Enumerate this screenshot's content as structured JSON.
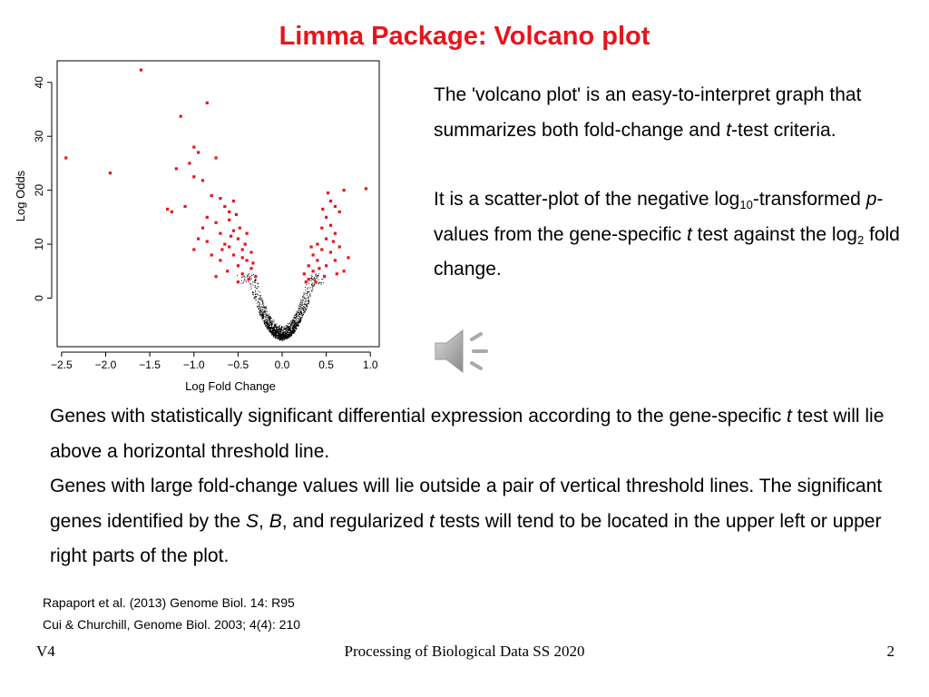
{
  "title": "Limma Package: Volcano plot",
  "right_text": {
    "p1_a": "The 'volcano plot' is an easy-to-interpret graph that summarizes both fold-change and ",
    "p1_t": "t",
    "p1_b": "-test criteria.",
    "p2_a": "It is a scatter-plot of the negative log",
    "p2_sub1": "10",
    "p2_b": "-transformed ",
    "p2_p": "p",
    "p2_c": "-values from the gene-specific ",
    "p2_t": "t",
    "p2_d": " test against the log",
    "p2_sub2": "2",
    "p2_e": " fold change."
  },
  "body_text": {
    "s1_a": "Genes with statistically significant differential expression according to the gene-specific ",
    "s1_t": "t",
    "s1_b": " test will lie above a horizontal threshold line.",
    "s2_a": "Genes with large fold-change values will lie outside a pair of vertical threshold lines. The significant genes identified by the ",
    "s2_s": "S",
    "s2_comma": ", ",
    "s2_b": "B",
    "s2_c": ", and regularized ",
    "s2_t": "t",
    "s2_d": " tests will tend to be located in the upper left or upper right parts of the plot."
  },
  "references": [
    "Rapaport et al. (2013) Genome Biol. 14: R95",
    "Cui & Churchill, Genome Biol. 2003; 4(4): 210"
  ],
  "footer": {
    "left": "V4",
    "center": "Processing of Biological Data SS 2020",
    "right": "2"
  },
  "icons": {
    "audio": "speaker-icon"
  },
  "chart_data": {
    "type": "scatter",
    "xlabel": "Log Fold Change",
    "ylabel": "Log Odds",
    "xlim": [
      -2.55,
      1.1
    ],
    "ylim": [
      -9,
      44
    ],
    "xticks": [
      -2.5,
      -2.0,
      -1.5,
      -1.0,
      -0.5,
      0.0,
      0.5,
      1.0
    ],
    "xtick_labels": [
      "−2.5",
      "−2.0",
      "−1.5",
      "−1.0",
      "−0.5",
      "0.0",
      "0.5",
      "1.0"
    ],
    "yticks": [
      0,
      10,
      20,
      30,
      40
    ],
    "ytick_labels": [
      "0",
      "10",
      "20",
      "30",
      "40"
    ],
    "grid": false,
    "colors": {
      "significant": "#e8141b",
      "nonsignificant": "#000000"
    },
    "series": [
      {
        "values": [
          [
            -2.45,
            26
          ],
          [
            -1.95,
            23.2
          ],
          [
            -1.6,
            42.3
          ],
          [
            -1.15,
            33.7
          ],
          [
            -0.85,
            36.2
          ],
          [
            -1.0,
            28
          ],
          [
            -0.95,
            27
          ],
          [
            -1.05,
            25
          ],
          [
            -1.2,
            24
          ],
          [
            -1.0,
            22.5
          ],
          [
            -0.9,
            21.8
          ],
          [
            -0.75,
            26
          ],
          [
            -1.3,
            16.5
          ],
          [
            -1.25,
            16
          ],
          [
            -1.1,
            17
          ],
          [
            -0.8,
            19
          ],
          [
            -0.7,
            18.5
          ],
          [
            -0.65,
            17
          ],
          [
            -0.55,
            18
          ],
          [
            -0.6,
            16
          ],
          [
            -0.85,
            15
          ],
          [
            -0.9,
            13
          ],
          [
            -0.95,
            11
          ],
          [
            -1.0,
            9
          ],
          [
            -0.75,
            14
          ],
          [
            -0.7,
            12
          ],
          [
            -0.65,
            10
          ],
          [
            -0.8,
            8
          ],
          [
            -0.6,
            14.5
          ],
          [
            -0.55,
            12.5
          ],
          [
            -0.5,
            11
          ],
          [
            -0.45,
            9
          ],
          [
            -0.4,
            7
          ],
          [
            -0.35,
            5.5
          ],
          [
            -0.5,
            6
          ],
          [
            -0.55,
            8
          ],
          [
            -0.6,
            9.5
          ],
          [
            -0.7,
            7
          ],
          [
            -0.45,
            4.5
          ],
          [
            -0.38,
            3.5
          ],
          [
            -0.5,
            3
          ],
          [
            -0.42,
            10
          ],
          [
            -0.48,
            13
          ],
          [
            -0.62,
            5
          ],
          [
            -0.75,
            4
          ],
          [
            -0.4,
            12
          ],
          [
            -0.58,
            11.5
          ],
          [
            -0.52,
            15.5
          ],
          [
            -0.68,
            9
          ],
          [
            -0.35,
            8.5
          ],
          [
            -0.3,
            4
          ],
          [
            -0.33,
            6.5
          ],
          [
            -0.45,
            7.5
          ],
          [
            -0.85,
            10.5
          ],
          [
            0.95,
            20.3
          ],
          [
            0.7,
            20
          ],
          [
            0.6,
            17
          ],
          [
            0.55,
            18
          ],
          [
            0.65,
            16
          ],
          [
            0.5,
            15
          ],
          [
            0.45,
            13
          ],
          [
            0.55,
            13.5
          ],
          [
            0.6,
            12
          ],
          [
            0.5,
            11
          ],
          [
            0.4,
            10
          ],
          [
            0.45,
            9
          ],
          [
            0.35,
            8
          ],
          [
            0.4,
            7
          ],
          [
            0.3,
            6
          ],
          [
            0.35,
            5
          ],
          [
            0.25,
            4.5
          ],
          [
            0.3,
            3.5
          ],
          [
            0.5,
            6
          ],
          [
            0.6,
            7
          ],
          [
            0.65,
            9.5
          ],
          [
            0.55,
            8.5
          ],
          [
            0.42,
            5.5
          ],
          [
            0.38,
            3
          ],
          [
            0.7,
            5
          ],
          [
            0.75,
            7.5
          ],
          [
            0.48,
            4
          ],
          [
            0.62,
            4.5
          ],
          [
            0.33,
            9.5
          ],
          [
            0.27,
            3
          ],
          [
            0.58,
            10.5
          ],
          [
            0.52,
            19.5
          ],
          [
            0.46,
            16.5
          ]
        ]
      }
    ]
  }
}
